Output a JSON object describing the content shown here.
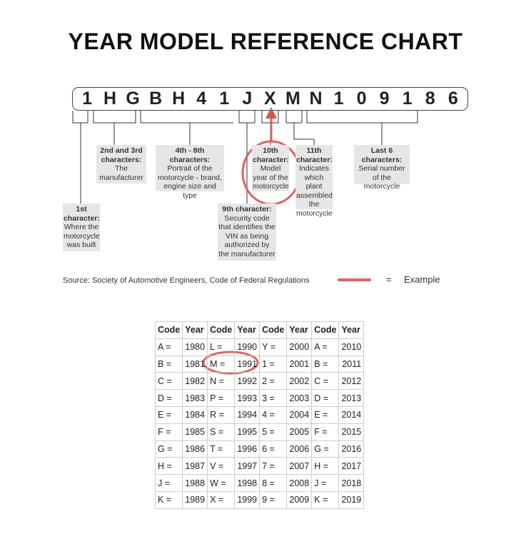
{
  "title": "YEAR MODEL REFERENCE CHART",
  "vin": [
    "1",
    "H",
    "G",
    "B",
    "H",
    "4",
    "1",
    "J",
    "X",
    "M",
    "N",
    "1",
    "0",
    "9",
    "1",
    "8",
    "6"
  ],
  "callouts": {
    "first": {
      "heading": "1st character:",
      "text": "Where the motorcycle was built"
    },
    "second_third": {
      "heading": "2nd and 3rd characters:",
      "text": "The manufacturer"
    },
    "fourth_eighth": {
      "heading": "4th - 8th characters:",
      "text": "Portrait of the motorcycle - brand, engine size and type"
    },
    "ninth": {
      "heading": "9th character:",
      "text": "Security code that identifies the VIN as being authorized by the manufacturer"
    },
    "tenth": {
      "heading": "10th character:",
      "text": "Model year of the motorcycle"
    },
    "eleventh": {
      "heading": "11th character:",
      "text": "Indicates which plant assembled the motorcycle"
    },
    "last_six": {
      "heading": "Last 6 characters:",
      "text": "Serial number of the motorcycle"
    }
  },
  "source": "Source:  Society of Automotive Engineers, Code of Federal Regulations",
  "legend": {
    "equals": "=",
    "label": "Example",
    "color": "#d9534f"
  },
  "table": {
    "headers": [
      "Code",
      "Year",
      "Code",
      "Year",
      "Code",
      "Year",
      "Code",
      "Year"
    ],
    "rows": [
      [
        "A =",
        "1980",
        "L =",
        "1990",
        "Y =",
        "2000",
        "A =",
        "2010"
      ],
      [
        "B =",
        "1981",
        "M =",
        "1991",
        "1 =",
        "2001",
        "B =",
        "2011"
      ],
      [
        "C =",
        "1982",
        "N =",
        "1992",
        "2 =",
        "2002",
        "C =",
        "2012"
      ],
      [
        "D =",
        "1983",
        "P =",
        "1993",
        "3 =",
        "2003",
        "D =",
        "2013"
      ],
      [
        "E =",
        "1984",
        "R =",
        "1994",
        "4 =",
        "2004",
        "E =",
        "2014"
      ],
      [
        "F =",
        "1985",
        "S =",
        "1995",
        "5 =",
        "2005",
        "F =",
        "2015"
      ],
      [
        "G =",
        "1986",
        "T =",
        "1996",
        "6 =",
        "2006",
        "G =",
        "2016"
      ],
      [
        "H =",
        "1987",
        "V =",
        "1997",
        "7 =",
        "2007",
        "H =",
        "2017"
      ],
      [
        "J =",
        "1988",
        "W =",
        "1998",
        "8 =",
        "2008",
        "J =",
        "2018"
      ],
      [
        "K =",
        "1989",
        "X =",
        "1999",
        "9 =",
        "2009",
        "K =",
        "2019"
      ]
    ],
    "highlighted": {
      "code": "M =",
      "year": "1991"
    }
  }
}
